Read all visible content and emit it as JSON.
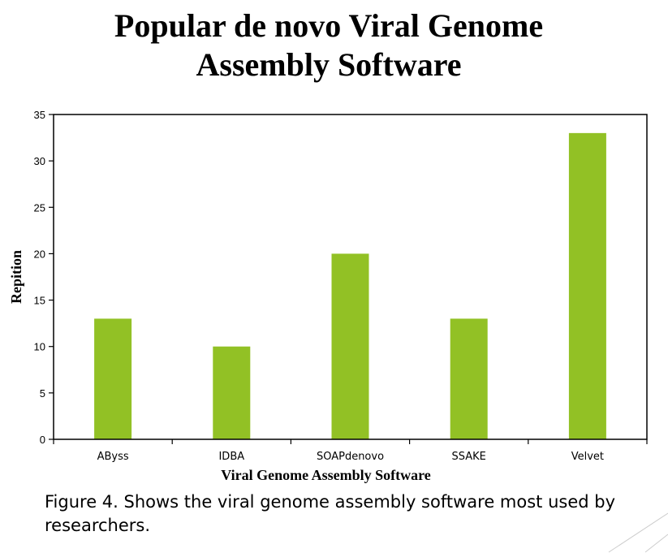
{
  "page": {
    "title_line1": "Popular de novo Viral Genome",
    "title_line2": "Assembly Software",
    "caption_line1": "Figure 4. Shows the viral genome assembly software most used by",
    "caption_line2": "researchers."
  },
  "chart_data": {
    "type": "bar",
    "title": "Popular de novo Viral Genome Assembly Software",
    "xlabel": "Viral Genome Assembly Software",
    "ylabel": "Repition",
    "categories": [
      "AByss",
      "IDBA",
      "SOAPdenovo",
      "SSAKE",
      "Velvet"
    ],
    "series": [
      {
        "values": [
          13,
          10,
          20,
          13,
          33
        ]
      }
    ],
    "ylim": [
      0,
      35
    ],
    "yticks": [
      0,
      5,
      10,
      15,
      20,
      25,
      30,
      35
    ],
    "grid": false,
    "legend": "none",
    "bar_color": "#92c125",
    "axis_color": "#000000"
  }
}
